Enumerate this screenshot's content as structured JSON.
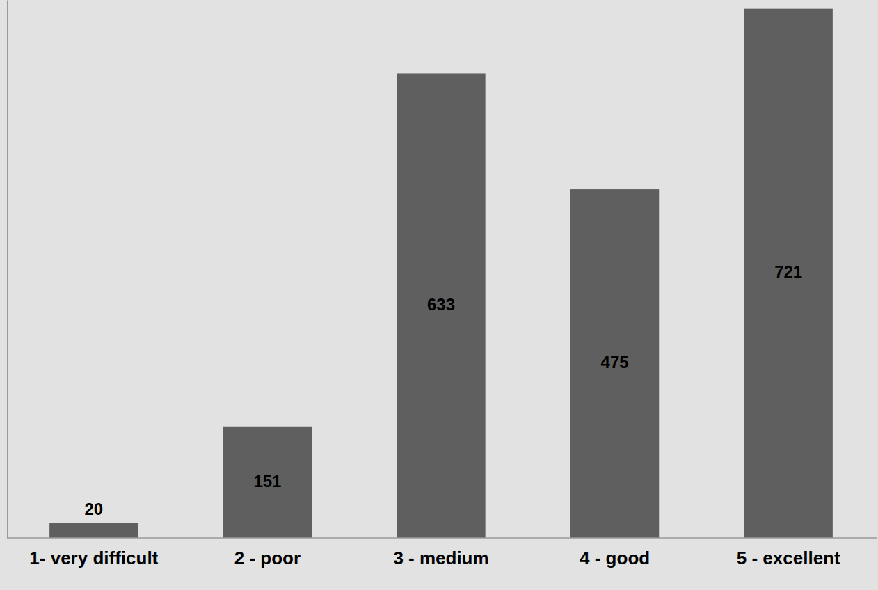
{
  "chart_data": {
    "type": "bar",
    "categories": [
      "1- very difficult",
      "2 - poor",
      "3 - medium",
      "4 - good",
      "5 - excellent"
    ],
    "values": [
      20,
      151,
      633,
      475,
      721
    ],
    "color": "#5f5f5f",
    "ylim": [
      0,
      733
    ],
    "grid": false,
    "data_labels": true,
    "tick_labels": "x"
  }
}
